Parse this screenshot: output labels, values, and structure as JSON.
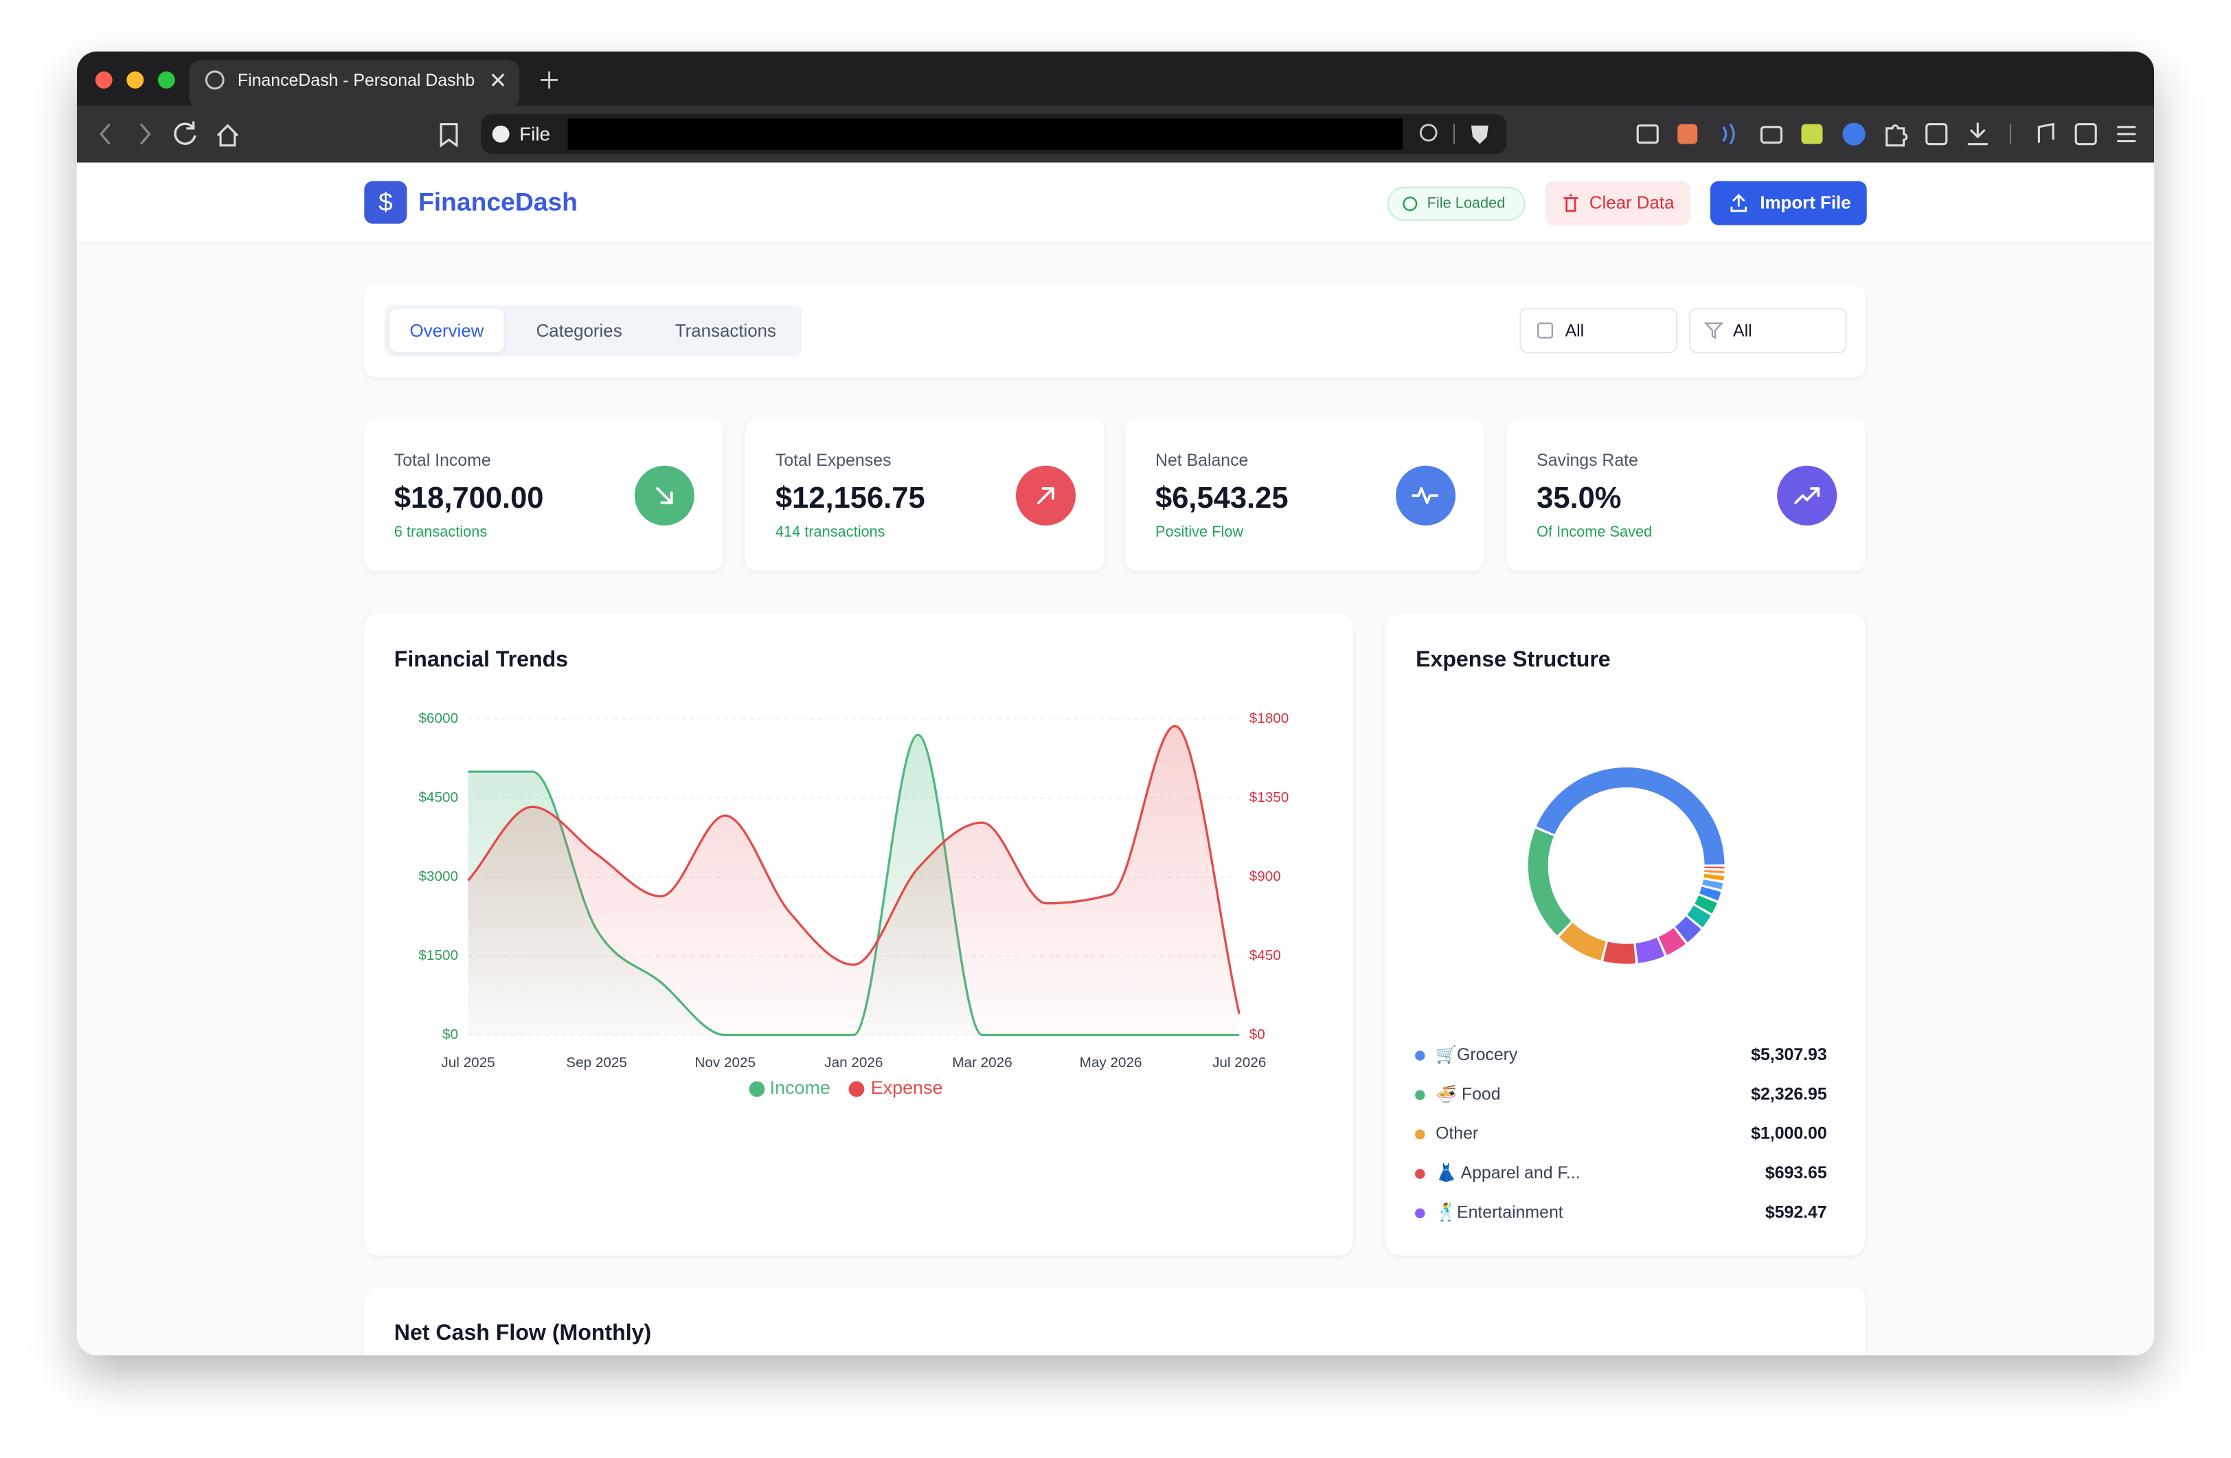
{
  "browser": {
    "tab_title": "FinanceDash - Personal Dashb",
    "address_label": "File"
  },
  "header": {
    "logo_symbol": "$",
    "brand": "FinanceDash",
    "status": "File Loaded",
    "clear_button": "Clear Data",
    "import_button": "Import File"
  },
  "tabs": {
    "items": [
      "Overview",
      "Categories",
      "Transactions"
    ],
    "active": 0
  },
  "filters": [
    "All",
    "All"
  ],
  "stats": [
    {
      "label": "Total Income",
      "value": "$18,700.00",
      "sub": "6 transactions",
      "color": "#4fb87f"
    },
    {
      "label": "Total Expenses",
      "value": "$12,156.75",
      "sub": "414 transactions",
      "color": "#e8505b"
    },
    {
      "label": "Net Balance",
      "value": "$6,543.25",
      "sub": "Positive Flow",
      "color": "#4f7ee8"
    },
    {
      "label": "Savings Rate",
      "value": "35.0%",
      "sub": "Of Income Saved",
      "color": "#6b5ce7"
    }
  ],
  "trends_chart": {
    "type": "line",
    "title": "Financial Trends",
    "categories": [
      "Jul 2025",
      null,
      "Sep 2025",
      null,
      "Nov 2025",
      null,
      "Jan 2026",
      null,
      "Mar 2026",
      null,
      "May 2026",
      null,
      "Jul 2026"
    ],
    "series": [
      {
        "name": "Income",
        "color": "#4fb87f",
        "values": [
          5000,
          5000,
          2000,
          1000,
          0,
          0,
          0,
          5700,
          0,
          0,
          0,
          0,
          0
        ]
      },
      {
        "name": "Expense",
        "color": "#e24c4b",
        "axis": "y2",
        "values": [
          880,
          1300,
          1030,
          790,
          1250,
          700,
          400,
          950,
          1210,
          750,
          800,
          1760,
          120
        ]
      }
    ],
    "ylim": [
      0,
      6000
    ],
    "yticks": [
      {
        "value": 0,
        "label": "$0"
      },
      {
        "value": 1500,
        "label": "$1500"
      },
      {
        "value": 3000,
        "label": "$3000"
      },
      {
        "value": 4500,
        "label": "$4500"
      },
      {
        "value": 6000,
        "label": "$6000"
      }
    ],
    "y2lim": [
      0,
      1800
    ],
    "y2ticks": [
      {
        "value": 0,
        "label": "$0"
      },
      {
        "value": 450,
        "label": "$450"
      },
      {
        "value": 900,
        "label": "$900"
      },
      {
        "value": 1350,
        "label": "$1350"
      },
      {
        "value": 1800,
        "label": "$1800"
      }
    ],
    "grid": true,
    "legend": "bottom"
  },
  "expense_chart": {
    "type": "donut",
    "title": "Expense Structure",
    "categories": [
      "🛒Grocery",
      "🍜 Food",
      "Other",
      "👗 Apparel and F...",
      "🕺Entertainment"
    ],
    "values": [
      5307.93,
      2326.95,
      1000,
      693.65,
      592.47
    ],
    "value_labels": [
      "$5,307.93",
      "$2,326.95",
      "$1,000.00",
      "$693.65",
      "$592.47"
    ],
    "colors": [
      "#4f86ec",
      "#4fb87f",
      "#eea23a",
      "#e24c4b",
      "#8b5cf6"
    ],
    "unlisted_values": [
      480,
      420,
      330,
      280,
      230,
      180,
      140,
      100,
      80
    ],
    "unlisted_colors": [
      "#ec4899",
      "#6366f1",
      "#14b8a6",
      "#10b981",
      "#3b82f6",
      "#60a5fa",
      "#f59e0b",
      "#fb923c",
      "#ef4444"
    ]
  },
  "cash_flow": {
    "title": "Net Cash Flow (Monthly)"
  }
}
